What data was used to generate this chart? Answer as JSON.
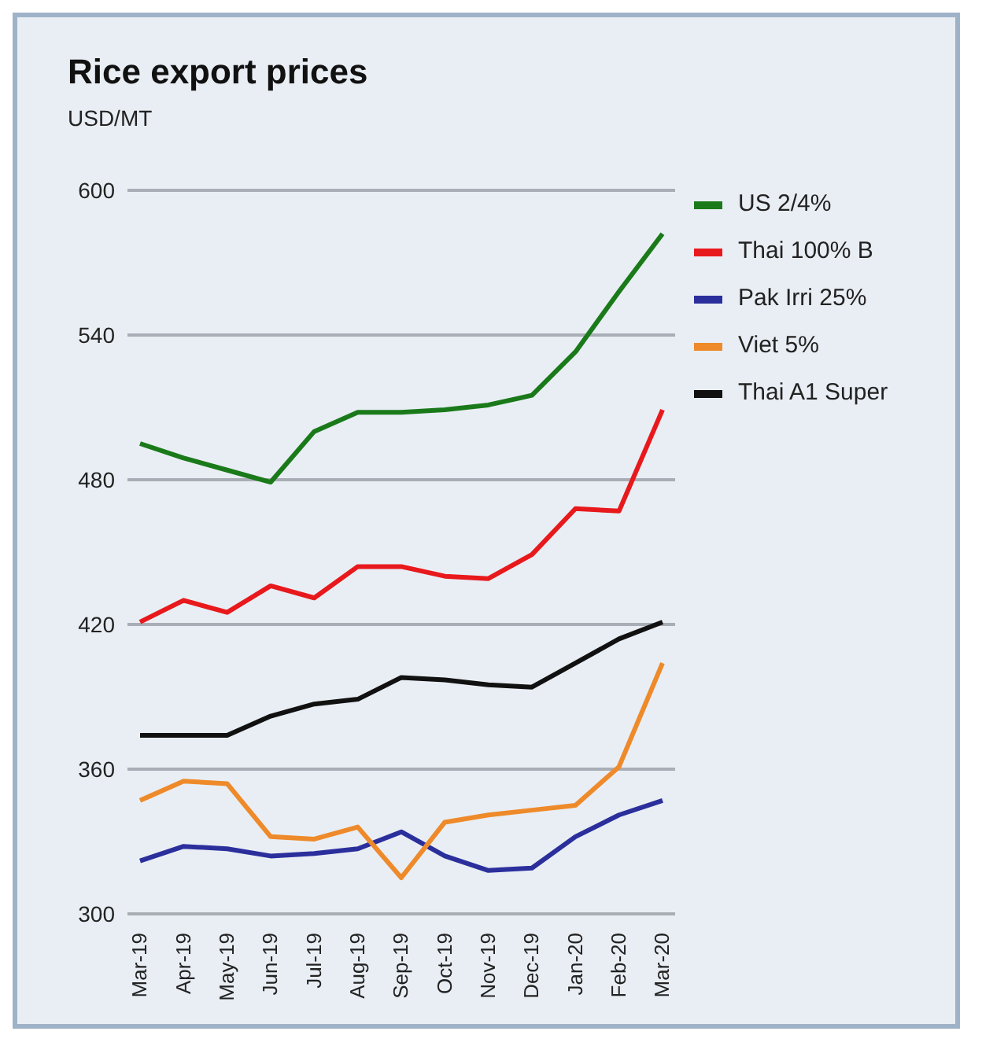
{
  "chart_data": {
    "type": "line",
    "title": "Rice export prices",
    "subtitle": "USD/MT",
    "categories": [
      "Mar-19",
      "Apr-19",
      "May-19",
      "Jun-19",
      "Jul-19",
      "Aug-19",
      "Sep-19",
      "Oct-19",
      "Nov-19",
      "Dec-19",
      "Jan-20",
      "Feb-20",
      "Mar-20"
    ],
    "series": [
      {
        "name": "US 2/4%",
        "color": "#1a7a1a",
        "values": [
          495,
          489,
          484,
          479,
          500,
          508,
          508,
          509,
          511,
          515,
          533,
          558,
          582
        ]
      },
      {
        "name": "Thai 100% B",
        "color": "#e8191c",
        "values": [
          421,
          430,
          425,
          436,
          431,
          444,
          444,
          440,
          439,
          449,
          468,
          467,
          509
        ]
      },
      {
        "name": "Pak Irri 25%",
        "color": "#2b2f9c",
        "values": [
          322,
          328,
          327,
          324,
          325,
          327,
          334,
          324,
          318,
          319,
          332,
          341,
          347
        ]
      },
      {
        "name": "Viet 5%",
        "color": "#ee8a2a",
        "values": [
          347,
          355,
          354,
          332,
          331,
          336,
          315,
          338,
          341,
          343,
          345,
          361,
          404
        ]
      },
      {
        "name": "Thai A1 Super",
        "color": "#111111",
        "values": [
          374,
          374,
          374,
          382,
          387,
          389,
          398,
          397,
          395,
          394,
          404,
          414,
          421
        ]
      }
    ],
    "ylim": [
      300,
      600
    ],
    "yticks": [
      300,
      360,
      420,
      480,
      540,
      600
    ],
    "grid": "y",
    "legend": "right",
    "marker": "none",
    "line_style": "solid"
  }
}
